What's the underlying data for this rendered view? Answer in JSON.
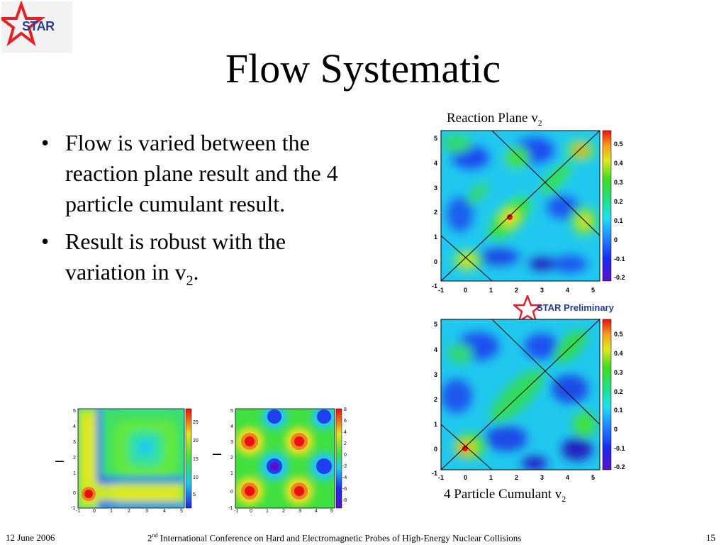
{
  "logo": {
    "text": "STAR",
    "icon": "star-logo-icon"
  },
  "title": "Flow Systematic",
  "bullets": [
    {
      "text": "Flow is varied between the reaction plane result and the 4 particle cumulant result."
    },
    {
      "text_main": "Result is robust with the variation in v",
      "sub": "2",
      "tail": "."
    }
  ],
  "maps": {
    "top": {
      "caption": "Reaction Plane v",
      "caption_sub": "2",
      "colorbar_labels": [
        "0.5",
        "0.4",
        "0.3",
        "0.2",
        "0.1",
        "0",
        "-0.1",
        "-0.2"
      ],
      "x_ticks": [
        "-1",
        "0",
        "1",
        "2",
        "3",
        "4",
        "5"
      ],
      "y_ticks": [
        "5",
        "4",
        "3",
        "2",
        "1",
        "0",
        "-1"
      ]
    },
    "bottom": {
      "caption": "4 Particle Cumulant v",
      "caption_sub": "2",
      "colorbar_labels": [
        "0.5",
        "0.4",
        "0.3",
        "0.2",
        "0.1",
        "0",
        "-0.1",
        "-0.2"
      ],
      "x_ticks": [
        "-1",
        "0",
        "1",
        "2",
        "3",
        "4",
        "5"
      ],
      "y_ticks": [
        "5",
        "4",
        "3",
        "2",
        "1",
        "0",
        "-1"
      ]
    },
    "left_small": {
      "colorbar_labels": [
        "25",
        "20",
        "15",
        "10",
        "5"
      ],
      "x_ticks": [
        "-1",
        "0",
        "1",
        "2",
        "3",
        "4",
        "5"
      ],
      "y_ticks": [
        "5",
        "4",
        "3",
        "2",
        "1",
        "0",
        "-1"
      ]
    },
    "right_small": {
      "colorbar_labels": [
        "8",
        "6",
        "4",
        "2",
        "0",
        "-2",
        "-4",
        "-6",
        "-8"
      ],
      "x_ticks": [
        "-1",
        "0",
        "1",
        "2",
        "3",
        "4",
        "5"
      ],
      "y_ticks": [
        "5",
        "4",
        "3",
        "2",
        "1",
        "0",
        "-1"
      ]
    }
  },
  "preliminary": {
    "text": "STAR Preliminary"
  },
  "minus_signs": [
    "–",
    "–"
  ],
  "footer": {
    "date": "12 June 2006",
    "conf_pre": "2",
    "conf_sup": "nd",
    "conf_text": " International Conference on Hard and Electromagnetic Probes of High-Energy Nuclear Collisions",
    "page": "15"
  },
  "colors": {
    "logo_red": "#e32228",
    "logo_blue": "#2a3f99",
    "prelim_blue": "#1f3a9f"
  }
}
